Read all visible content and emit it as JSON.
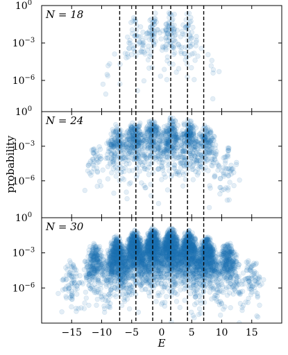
{
  "chart_data": {
    "type": "scatter",
    "xlabel": "E",
    "ylabel": "probability",
    "xlim": [
      -20,
      20
    ],
    "x_ticks": [
      -15,
      -10,
      -5,
      0,
      5,
      10,
      15
    ],
    "x_tick_labels": [
      "−15",
      "−10",
      "−5",
      "0",
      "5",
      "10",
      "15"
    ],
    "y_scale": "log",
    "y_ticks": [
      1,
      0.001,
      1e-06
    ],
    "y_tick_labels": [
      {
        "base": "10",
        "exp": "0"
      },
      {
        "base": "10",
        "exp": "−3"
      },
      {
        "base": "10",
        "exp": "−6"
      }
    ],
    "vlines": [
      -7.0,
      -4.3,
      -1.5,
      1.5,
      4.3,
      7.0
    ],
    "marker_color": "#1f77b4",
    "marker_alpha": 0.12,
    "panels": [
      {
        "label": "N = 18",
        "N": 18,
        "ylim_log10": [
          -8.5,
          0
        ],
        "points": 250,
        "clusters": [
          {
            "center": -4.5,
            "width": 1.6,
            "peak_log10": -0.5,
            "fall": 0.55,
            "weight": 1
          },
          {
            "center": -1.5,
            "width": 1.5,
            "peak_log10": -0.3,
            "fall": 0.5,
            "weight": 1.2
          },
          {
            "center": 1.5,
            "width": 1.5,
            "peak_log10": -0.3,
            "fall": 0.5,
            "weight": 1.2
          },
          {
            "center": 4.5,
            "width": 1.6,
            "peak_log10": -0.5,
            "fall": 0.55,
            "weight": 1
          },
          {
            "center": -8.5,
            "width": 1.2,
            "peak_log10": -2.8,
            "fall": 0.3,
            "weight": 0.1
          },
          {
            "center": 8.5,
            "width": 1.2,
            "peak_log10": -2.8,
            "fall": 0.3,
            "weight": 0.1
          }
        ]
      },
      {
        "label": "N = 24",
        "N": 24,
        "ylim_log10": [
          -9.2,
          0
        ],
        "points": 1400,
        "clusters": [
          {
            "center": -7.5,
            "width": 1.6,
            "peak_log10": -1.0,
            "fall": 0.55,
            "weight": 0.8
          },
          {
            "center": -4.5,
            "width": 1.6,
            "peak_log10": -0.6,
            "fall": 0.5,
            "weight": 1
          },
          {
            "center": -1.5,
            "width": 1.5,
            "peak_log10": -0.4,
            "fall": 0.45,
            "weight": 1.1
          },
          {
            "center": 1.5,
            "width": 1.5,
            "peak_log10": -0.4,
            "fall": 0.45,
            "weight": 1.1
          },
          {
            "center": 4.5,
            "width": 1.6,
            "peak_log10": -0.6,
            "fall": 0.5,
            "weight": 1
          },
          {
            "center": 7.5,
            "width": 1.6,
            "peak_log10": -1.0,
            "fall": 0.55,
            "weight": 0.8
          },
          {
            "center": -11,
            "width": 1.4,
            "peak_log10": -2.5,
            "fall": 0.45,
            "weight": 0.2
          },
          {
            "center": 11,
            "width": 1.4,
            "peak_log10": -2.5,
            "fall": 0.45,
            "weight": 0.2
          }
        ]
      },
      {
        "label": "N = 30",
        "N": 30,
        "ylim_log10": [
          -9.0,
          0
        ],
        "points": 5000,
        "clusters": [
          {
            "center": -11,
            "width": 1.6,
            "peak_log10": -2.0,
            "fall": 0.5,
            "weight": 0.45
          },
          {
            "center": -7.5,
            "width": 1.6,
            "peak_log10": -1.5,
            "fall": 0.6,
            "weight": 0.9
          },
          {
            "center": -4.5,
            "width": 1.6,
            "peak_log10": -1.0,
            "fall": 0.55,
            "weight": 1
          },
          {
            "center": -1.5,
            "width": 1.5,
            "peak_log10": -0.8,
            "fall": 0.5,
            "weight": 1.1
          },
          {
            "center": 1.5,
            "width": 1.5,
            "peak_log10": -0.8,
            "fall": 0.5,
            "weight": 1.1
          },
          {
            "center": 4.5,
            "width": 1.6,
            "peak_log10": -1.0,
            "fall": 0.55,
            "weight": 1
          },
          {
            "center": 7.5,
            "width": 1.6,
            "peak_log10": -1.5,
            "fall": 0.6,
            "weight": 0.9
          },
          {
            "center": 11,
            "width": 1.6,
            "peak_log10": -2.0,
            "fall": 0.5,
            "weight": 0.45
          },
          {
            "center": -15,
            "width": 1.6,
            "peak_log10": -3.5,
            "fall": 0.4,
            "weight": 0.12
          },
          {
            "center": 15,
            "width": 1.6,
            "peak_log10": -3.5,
            "fall": 0.4,
            "weight": 0.12
          }
        ]
      }
    ]
  }
}
